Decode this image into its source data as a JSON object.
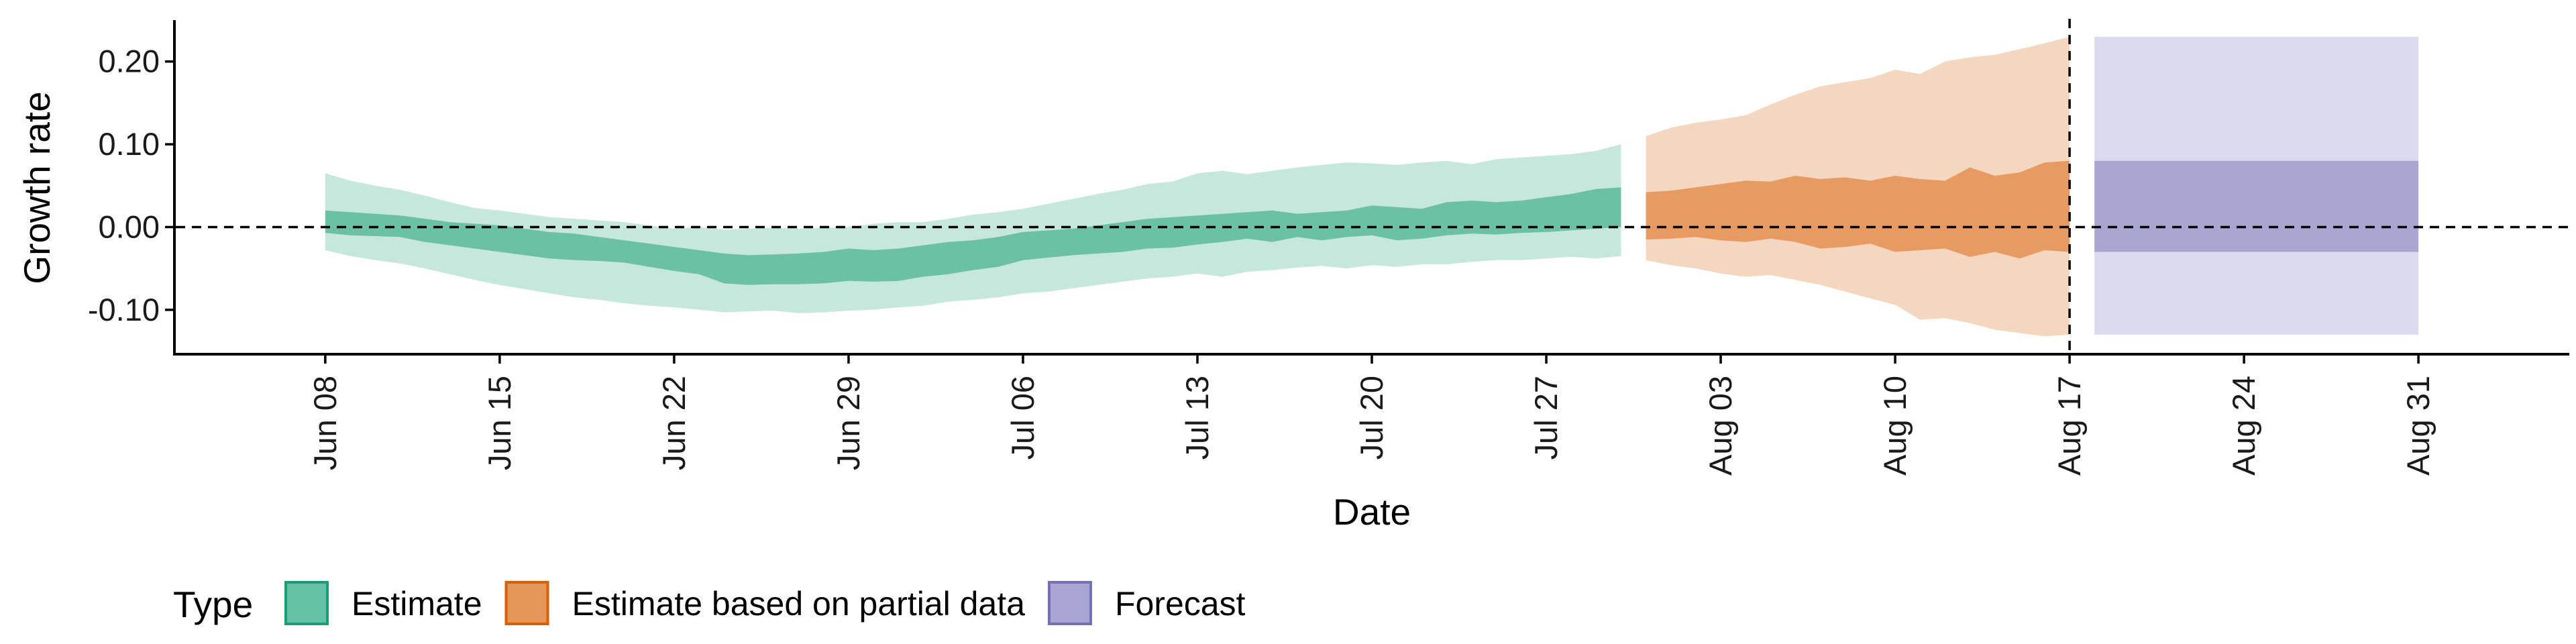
{
  "chart_data": {
    "type": "area",
    "title": "",
    "xlabel": "Date",
    "ylabel": "Growth rate",
    "x_type": "date",
    "xlim": [
      "2020-06-02",
      "2020-09-06"
    ],
    "ylim": [
      -0.152,
      0.25
    ],
    "x_ticks": [
      {
        "date": "2020-06-08",
        "label": "Jun 08"
      },
      {
        "date": "2020-06-15",
        "label": "Jun 15"
      },
      {
        "date": "2020-06-22",
        "label": "Jun 22"
      },
      {
        "date": "2020-06-29",
        "label": "Jun 29"
      },
      {
        "date": "2020-07-06",
        "label": "Jul 06"
      },
      {
        "date": "2020-07-13",
        "label": "Jul 13"
      },
      {
        "date": "2020-07-20",
        "label": "Jul 20"
      },
      {
        "date": "2020-07-27",
        "label": "Jul 27"
      },
      {
        "date": "2020-08-03",
        "label": "Aug 03"
      },
      {
        "date": "2020-08-10",
        "label": "Aug 10"
      },
      {
        "date": "2020-08-17",
        "label": "Aug 17"
      },
      {
        "date": "2020-08-24",
        "label": "Aug 24"
      },
      {
        "date": "2020-08-31",
        "label": "Aug 31"
      }
    ],
    "y_ticks": [
      {
        "value": 0.2,
        "label": "0.20"
      },
      {
        "value": 0.1,
        "label": "0.10"
      },
      {
        "value": 0.0,
        "label": "0.00"
      },
      {
        "value": -0.1,
        "label": "-0.10"
      }
    ],
    "reference_lines": [
      {
        "axis": "y",
        "value": 0.0,
        "style": "dashed"
      },
      {
        "axis": "x",
        "date": "2020-08-17",
        "style": "dashed"
      }
    ],
    "grid": false,
    "legend": {
      "title": "Type",
      "position": "bottom-left",
      "entries": [
        {
          "label": "Estimate",
          "fill": "#66c2a5",
          "border": "#1b9e77"
        },
        {
          "label": "Estimate based on partial data",
          "fill": "#e5975a",
          "border": "#d95f02"
        },
        {
          "label": "Forecast",
          "fill": "#a9a4d1",
          "border": "#7570b3"
        }
      ]
    },
    "series": [
      {
        "name": "Estimate",
        "colors": {
          "inner": "#6cc0a3",
          "outer": "#c5e7dc"
        },
        "x": [
          "2020-06-08",
          "2020-06-09",
          "2020-06-10",
          "2020-06-11",
          "2020-06-12",
          "2020-06-13",
          "2020-06-14",
          "2020-06-15",
          "2020-06-16",
          "2020-06-17",
          "2020-06-18",
          "2020-06-19",
          "2020-06-20",
          "2020-06-21",
          "2020-06-22",
          "2020-06-23",
          "2020-06-24",
          "2020-06-25",
          "2020-06-26",
          "2020-06-27",
          "2020-06-28",
          "2020-06-29",
          "2020-06-30",
          "2020-07-01",
          "2020-07-02",
          "2020-07-03",
          "2020-07-04",
          "2020-07-05",
          "2020-07-06",
          "2020-07-07",
          "2020-07-08",
          "2020-07-09",
          "2020-07-10",
          "2020-07-11",
          "2020-07-12",
          "2020-07-13",
          "2020-07-14",
          "2020-07-15",
          "2020-07-16",
          "2020-07-17",
          "2020-07-18",
          "2020-07-19",
          "2020-07-20",
          "2020-07-21",
          "2020-07-22",
          "2020-07-23",
          "2020-07-24",
          "2020-07-25",
          "2020-07-26",
          "2020-07-27",
          "2020-07-28",
          "2020-07-29",
          "2020-07-30"
        ],
        "inner_lower": [
          -0.007,
          -0.01,
          -0.011,
          -0.012,
          -0.018,
          -0.022,
          -0.026,
          -0.03,
          -0.034,
          -0.038,
          -0.04,
          -0.041,
          -0.043,
          -0.048,
          -0.053,
          -0.057,
          -0.068,
          -0.07,
          -0.069,
          -0.069,
          -0.068,
          -0.065,
          -0.066,
          -0.065,
          -0.06,
          -0.057,
          -0.052,
          -0.048,
          -0.04,
          -0.037,
          -0.034,
          -0.032,
          -0.03,
          -0.026,
          -0.025,
          -0.021,
          -0.018,
          -0.014,
          -0.018,
          -0.012,
          -0.016,
          -0.012,
          -0.01,
          -0.016,
          -0.014,
          -0.01,
          -0.008,
          -0.009,
          -0.007,
          -0.006,
          -0.004,
          -0.002,
          0.0
        ],
        "inner_upper": [
          0.02,
          0.018,
          0.016,
          0.014,
          0.01,
          0.006,
          0.004,
          0.002,
          -0.002,
          -0.006,
          -0.008,
          -0.012,
          -0.016,
          -0.02,
          -0.024,
          -0.028,
          -0.032,
          -0.034,
          -0.033,
          -0.032,
          -0.03,
          -0.026,
          -0.028,
          -0.026,
          -0.022,
          -0.018,
          -0.016,
          -0.012,
          -0.006,
          -0.004,
          -0.002,
          0.002,
          0.006,
          0.01,
          0.012,
          0.014,
          0.016,
          0.018,
          0.02,
          0.016,
          0.018,
          0.02,
          0.026,
          0.024,
          0.022,
          0.03,
          0.032,
          0.03,
          0.032,
          0.036,
          0.04,
          0.046,
          0.048
        ],
        "outer_lower": [
          -0.028,
          -0.035,
          -0.04,
          -0.044,
          -0.05,
          -0.057,
          -0.064,
          -0.07,
          -0.075,
          -0.08,
          -0.085,
          -0.088,
          -0.092,
          -0.095,
          -0.097,
          -0.1,
          -0.103,
          -0.102,
          -0.101,
          -0.104,
          -0.103,
          -0.101,
          -0.1,
          -0.097,
          -0.095,
          -0.09,
          -0.088,
          -0.085,
          -0.08,
          -0.078,
          -0.074,
          -0.07,
          -0.066,
          -0.062,
          -0.06,
          -0.056,
          -0.06,
          -0.054,
          -0.052,
          -0.049,
          -0.047,
          -0.05,
          -0.046,
          -0.048,
          -0.045,
          -0.045,
          -0.042,
          -0.04,
          -0.04,
          -0.038,
          -0.036,
          -0.038,
          -0.035
        ],
        "outer_upper": [
          0.065,
          0.056,
          0.05,
          0.045,
          0.038,
          0.03,
          0.023,
          0.02,
          0.016,
          0.012,
          0.01,
          0.008,
          0.006,
          0.002,
          -0.002,
          0.0,
          -0.003,
          -0.002,
          -0.001,
          -0.002,
          -0.001,
          0.0,
          0.004,
          0.006,
          0.006,
          0.01,
          0.015,
          0.018,
          0.022,
          0.028,
          0.034,
          0.04,
          0.045,
          0.052,
          0.055,
          0.065,
          0.068,
          0.064,
          0.068,
          0.072,
          0.075,
          0.078,
          0.077,
          0.075,
          0.078,
          0.08,
          0.076,
          0.082,
          0.084,
          0.086,
          0.088,
          0.092,
          0.1
        ]
      },
      {
        "name": "Estimate based on partial data",
        "colors": {
          "inner": "#e79a62",
          "outer": "#f5d6bf"
        },
        "x": [
          "2020-07-31",
          "2020-08-01",
          "2020-08-02",
          "2020-08-03",
          "2020-08-04",
          "2020-08-05",
          "2020-08-06",
          "2020-08-07",
          "2020-08-08",
          "2020-08-09",
          "2020-08-10",
          "2020-08-11",
          "2020-08-12",
          "2020-08-13",
          "2020-08-14",
          "2020-08-15",
          "2020-08-16",
          "2020-08-17"
        ],
        "inner_lower": [
          -0.015,
          -0.014,
          -0.012,
          -0.016,
          -0.018,
          -0.014,
          -0.018,
          -0.026,
          -0.024,
          -0.02,
          -0.03,
          -0.028,
          -0.026,
          -0.036,
          -0.03,
          -0.038,
          -0.028,
          -0.03
        ],
        "inner_upper": [
          0.042,
          0.044,
          0.048,
          0.052,
          0.056,
          0.055,
          0.062,
          0.058,
          0.06,
          0.056,
          0.062,
          0.058,
          0.056,
          0.072,
          0.062,
          0.066,
          0.078,
          0.08
        ],
        "outer_lower": [
          -0.04,
          -0.046,
          -0.05,
          -0.056,
          -0.06,
          -0.058,
          -0.064,
          -0.07,
          -0.078,
          -0.086,
          -0.094,
          -0.112,
          -0.11,
          -0.116,
          -0.124,
          -0.128,
          -0.132,
          -0.13
        ],
        "outer_upper": [
          0.11,
          0.12,
          0.126,
          0.13,
          0.135,
          0.148,
          0.16,
          0.17,
          0.175,
          0.18,
          0.19,
          0.185,
          0.2,
          0.205,
          0.208,
          0.215,
          0.222,
          0.23
        ]
      },
      {
        "name": "Forecast",
        "colors": {
          "inner": "#aba6d1",
          "outer": "#dcdbed"
        },
        "x": [
          "2020-08-18",
          "2020-08-31"
        ],
        "inner_lower": [
          -0.03,
          -0.03
        ],
        "inner_upper": [
          0.08,
          0.08
        ],
        "outer_lower": [
          -0.13,
          -0.13
        ],
        "outer_upper": [
          0.23,
          0.23
        ]
      }
    ]
  }
}
